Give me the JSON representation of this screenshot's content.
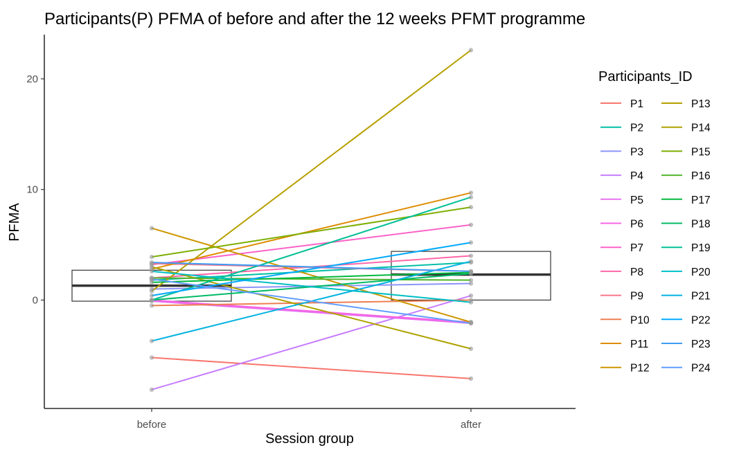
{
  "chart_data": {
    "type": "line",
    "title": "Participants(P) PFMA of before and after the 12 weeks PFMT programme",
    "xlabel": "Session group",
    "ylabel": "PFMA",
    "categories": [
      "before",
      "after"
    ],
    "ylim": [
      -9.8,
      24.0
    ],
    "yticks": [
      0,
      10,
      20
    ],
    "grid": false,
    "legend": {
      "title": "Participants_ID",
      "placement": "right",
      "columns": 2
    },
    "boxplot": [
      {
        "category": "before",
        "q1": -0.1,
        "median": 1.3,
        "q3": 2.7
      },
      {
        "category": "after",
        "q1": 0.0,
        "median": 2.3,
        "q3": 4.4
      }
    ],
    "series": [
      {
        "name": "P1",
        "color": "#F8766D",
        "values": [
          -5.2,
          -7.1
        ]
      },
      {
        "name": "P2",
        "color": "#00BFA5",
        "values": [
          1.8,
          3.4
        ]
      },
      {
        "name": "P3",
        "color": "#8C94F8",
        "values": [
          1.0,
          1.5
        ]
      },
      {
        "name": "P4",
        "color": "#C77CFF",
        "values": [
          -8.1,
          0.4
        ]
      },
      {
        "name": "P5",
        "color": "#E771F0",
        "values": [
          -0.1,
          -2.1
        ]
      },
      {
        "name": "P6",
        "color": "#F564E3",
        "values": [
          0.0,
          -2.0
        ]
      },
      {
        "name": "P7",
        "color": "#FC61C9",
        "values": [
          3.2,
          6.8
        ]
      },
      {
        "name": "P8",
        "color": "#FF66A8",
        "values": [
          2.0,
          4.0
        ]
      },
      {
        "name": "P9",
        "color": "#F8768B",
        "values": [
          3.3,
          2.6
        ]
      },
      {
        "name": "P10",
        "color": "#EE7D50",
        "values": [
          -0.5,
          0.0
        ]
      },
      {
        "name": "P11",
        "color": "#DE8C00",
        "values": [
          2.8,
          9.7
        ]
      },
      {
        "name": "P12",
        "color": "#CD9600",
        "values": [
          6.5,
          -2.0
        ]
      },
      {
        "name": "P13",
        "color": "#B79F00",
        "values": [
          0.8,
          22.6
        ]
      },
      {
        "name": "P14",
        "color": "#AEA200",
        "values": [
          3.0,
          -4.4
        ]
      },
      {
        "name": "P15",
        "color": "#7CAE00",
        "values": [
          3.9,
          8.4
        ]
      },
      {
        "name": "P16",
        "color": "#4FB52C",
        "values": [
          2.0,
          1.8
        ]
      },
      {
        "name": "P17",
        "color": "#00B83C",
        "values": [
          1.6,
          2.5
        ]
      },
      {
        "name": "P18",
        "color": "#00BA65",
        "values": [
          0.0,
          2.4
        ]
      },
      {
        "name": "P19",
        "color": "#00C094",
        "values": [
          0.0,
          9.3
        ]
      },
      {
        "name": "P20",
        "color": "#00BFC4",
        "values": [
          2.6,
          -0.2
        ]
      },
      {
        "name": "P21",
        "color": "#00B2E0",
        "values": [
          -3.7,
          3.5
        ]
      },
      {
        "name": "P22",
        "color": "#00A9FF",
        "values": [
          0.4,
          5.2
        ]
      },
      {
        "name": "P23",
        "color": "#3D9CF5",
        "values": [
          3.4,
          2.6
        ]
      },
      {
        "name": "P24",
        "color": "#619CFF",
        "values": [
          1.9,
          -2.1
        ]
      }
    ]
  }
}
